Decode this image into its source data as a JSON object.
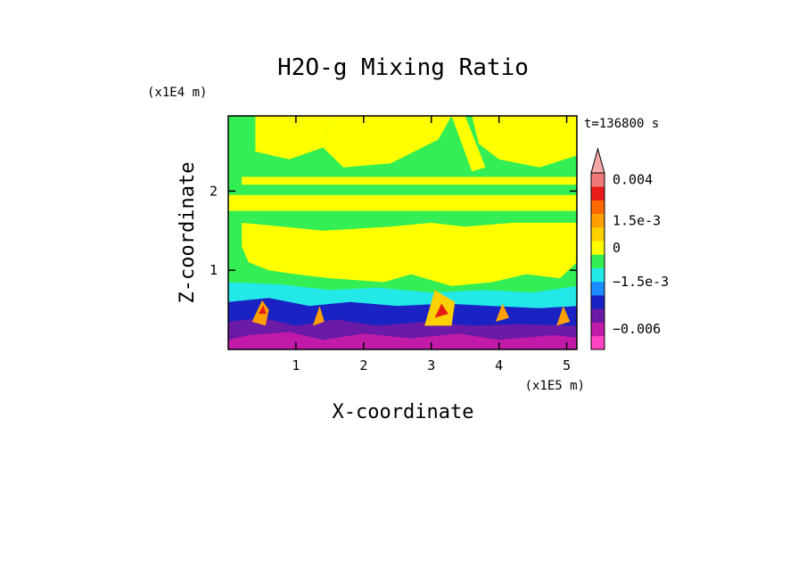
{
  "chart_data": {
    "type": "heatmap",
    "title": "H2O-g Mixing Ratio",
    "xlabel": "X-coordinate",
    "ylabel": "Z-coordinate",
    "x_scale_label": "(x1E5 m)",
    "y_scale_label": "(x1E4 m)",
    "time_label": "t=136800 s",
    "xlim": [
      0,
      5.15
    ],
    "ylim": [
      0,
      2.95
    ],
    "x_ticks": [
      {
        "value": 1,
        "label": "1"
      },
      {
        "value": 2,
        "label": "2"
      },
      {
        "value": 3,
        "label": "3"
      },
      {
        "value": 4,
        "label": "4"
      },
      {
        "value": 5,
        "label": "5"
      }
    ],
    "y_ticks": [
      {
        "value": 1,
        "label": "1"
      },
      {
        "value": 2,
        "label": "2"
      }
    ],
    "colorbar": {
      "levels": [
        {
          "color": "#ff44c4"
        },
        {
          "color": "#c21aa8"
        },
        {
          "color": "#6a1aa6"
        },
        {
          "color": "#1a22c4"
        },
        {
          "color": "#1a8cff"
        },
        {
          "color": "#22e8e8"
        },
        {
          "color": "#33ee55"
        },
        {
          "color": "#ffff00"
        },
        {
          "color": "#ffd000"
        },
        {
          "color": "#ffa000"
        },
        {
          "color": "#ff6a00"
        },
        {
          "color": "#e81a1a"
        },
        {
          "color": "#f07878"
        },
        {
          "color": "#f6a8a8"
        }
      ],
      "labels": [
        {
          "text": "0.004",
          "level": 12
        },
        {
          "text": "1.5e-3",
          "level": 9
        },
        {
          "text": "0",
          "level": 7
        },
        {
          "text": "−1.5e-3",
          "level": 4.5
        },
        {
          "text": "−0.006",
          "level": 1
        }
      ]
    },
    "background_color": "#33ee55",
    "regions": [
      {
        "name": "upper-yellow-band-left",
        "level": 7,
        "points": [
          [
            0.4,
            2.95
          ],
          [
            1.5,
            2.95
          ],
          [
            1.4,
            2.55
          ],
          [
            0.9,
            2.4
          ],
          [
            0.4,
            2.5
          ]
        ]
      },
      {
        "name": "upper-yellow-band-center",
        "level": 7,
        "points": [
          [
            1.5,
            2.95
          ],
          [
            3.3,
            2.95
          ],
          [
            3.1,
            2.65
          ],
          [
            2.4,
            2.35
          ],
          [
            1.7,
            2.3
          ],
          [
            1.4,
            2.55
          ]
        ]
      },
      {
        "name": "upper-yellow-band-right",
        "level": 7,
        "points": [
          [
            3.6,
            2.95
          ],
          [
            5.15,
            2.95
          ],
          [
            5.15,
            2.45
          ],
          [
            4.6,
            2.3
          ],
          [
            4.0,
            2.4
          ],
          [
            3.7,
            2.6
          ]
        ]
      },
      {
        "name": "upper-yellow-streak",
        "level": 7,
        "points": [
          [
            3.3,
            2.95
          ],
          [
            3.5,
            2.95
          ],
          [
            3.8,
            2.3
          ],
          [
            3.6,
            2.25
          ]
        ]
      },
      {
        "name": "yellow-band-21",
        "level": 7,
        "points": [
          [
            0.2,
            2.18
          ],
          [
            5.15,
            2.18
          ],
          [
            5.15,
            2.08
          ],
          [
            0.2,
            2.08
          ]
        ]
      },
      {
        "name": "yellow-band-18",
        "level": 7,
        "points": [
          [
            0.0,
            1.95
          ],
          [
            5.15,
            1.95
          ],
          [
            5.15,
            1.75
          ],
          [
            0.0,
            1.75
          ]
        ]
      },
      {
        "name": "main-yellow-layer",
        "level": 7,
        "points": [
          [
            0.2,
            1.6
          ],
          [
            0.8,
            1.55
          ],
          [
            1.4,
            1.5
          ],
          [
            2.4,
            1.55
          ],
          [
            3.0,
            1.6
          ],
          [
            3.5,
            1.55
          ],
          [
            4.2,
            1.6
          ],
          [
            5.15,
            1.6
          ],
          [
            5.15,
            1.1
          ],
          [
            4.9,
            0.9
          ],
          [
            4.4,
            0.95
          ],
          [
            3.9,
            0.85
          ],
          [
            3.3,
            0.8
          ],
          [
            2.7,
            0.95
          ],
          [
            2.3,
            0.85
          ],
          [
            1.5,
            0.9
          ],
          [
            1.0,
            0.95
          ],
          [
            0.6,
            1.0
          ],
          [
            0.3,
            1.1
          ],
          [
            0.2,
            1.3
          ]
        ]
      },
      {
        "name": "cyan-lower-layer",
        "level": 5,
        "points": [
          [
            0.0,
            0.85
          ],
          [
            0.8,
            0.82
          ],
          [
            1.5,
            0.75
          ],
          [
            2.2,
            0.78
          ],
          [
            3.0,
            0.72
          ],
          [
            3.8,
            0.75
          ],
          [
            4.5,
            0.72
          ],
          [
            5.15,
            0.8
          ],
          [
            5.15,
            0.0
          ],
          [
            0.0,
            0.0
          ]
        ]
      },
      {
        "name": "blue-lower-layer",
        "level": 3,
        "points": [
          [
            0.0,
            0.6
          ],
          [
            0.6,
            0.65
          ],
          [
            1.2,
            0.55
          ],
          [
            1.8,
            0.6
          ],
          [
            2.5,
            0.55
          ],
          [
            3.2,
            0.58
          ],
          [
            3.9,
            0.55
          ],
          [
            4.6,
            0.52
          ],
          [
            5.15,
            0.55
          ],
          [
            5.15,
            0.0
          ],
          [
            0.0,
            0.0
          ]
        ]
      },
      {
        "name": "purple-bottom-layer",
        "level": 2,
        "points": [
          [
            0.0,
            0.35
          ],
          [
            0.5,
            0.4
          ],
          [
            1.0,
            0.3
          ],
          [
            1.6,
            0.38
          ],
          [
            2.2,
            0.3
          ],
          [
            2.9,
            0.35
          ],
          [
            3.6,
            0.3
          ],
          [
            4.3,
            0.32
          ],
          [
            5.15,
            0.3
          ],
          [
            5.15,
            0.0
          ],
          [
            0.0,
            0.0
          ]
        ]
      },
      {
        "name": "magenta-bottom-patches",
        "level": 1,
        "points": [
          [
            0.3,
            0.18
          ],
          [
            0.9,
            0.22
          ],
          [
            1.4,
            0.12
          ],
          [
            2.0,
            0.2
          ],
          [
            2.7,
            0.14
          ],
          [
            3.4,
            0.2
          ],
          [
            4.0,
            0.12
          ],
          [
            4.8,
            0.18
          ],
          [
            5.15,
            0.15
          ],
          [
            5.15,
            0.0
          ],
          [
            0.0,
            0.0
          ],
          [
            0.0,
            0.12
          ]
        ]
      },
      {
        "name": "moist-plume-1",
        "level": 9,
        "points": [
          [
            0.35,
            0.35
          ],
          [
            0.5,
            0.62
          ],
          [
            0.6,
            0.5
          ],
          [
            0.55,
            0.3
          ]
        ]
      },
      {
        "name": "moist-plume-1-core",
        "level": 11,
        "points": [
          [
            0.45,
            0.45
          ],
          [
            0.52,
            0.56
          ],
          [
            0.56,
            0.45
          ]
        ]
      },
      {
        "name": "moist-plume-2",
        "level": 9,
        "points": [
          [
            1.25,
            0.3
          ],
          [
            1.35,
            0.55
          ],
          [
            1.42,
            0.35
          ]
        ]
      },
      {
        "name": "moist-plume-3",
        "level": 8,
        "points": [
          [
            2.9,
            0.3
          ],
          [
            3.05,
            0.75
          ],
          [
            3.35,
            0.6
          ],
          [
            3.3,
            0.3
          ]
        ]
      },
      {
        "name": "moist-plume-3-core",
        "level": 11,
        "points": [
          [
            3.05,
            0.4
          ],
          [
            3.15,
            0.58
          ],
          [
            3.25,
            0.45
          ]
        ]
      },
      {
        "name": "moist-plume-4",
        "level": 9,
        "points": [
          [
            3.95,
            0.35
          ],
          [
            4.05,
            0.58
          ],
          [
            4.15,
            0.4
          ]
        ]
      },
      {
        "name": "moist-plume-5",
        "level": 9,
        "points": [
          [
            4.85,
            0.3
          ],
          [
            4.95,
            0.55
          ],
          [
            5.05,
            0.35
          ]
        ]
      }
    ]
  }
}
